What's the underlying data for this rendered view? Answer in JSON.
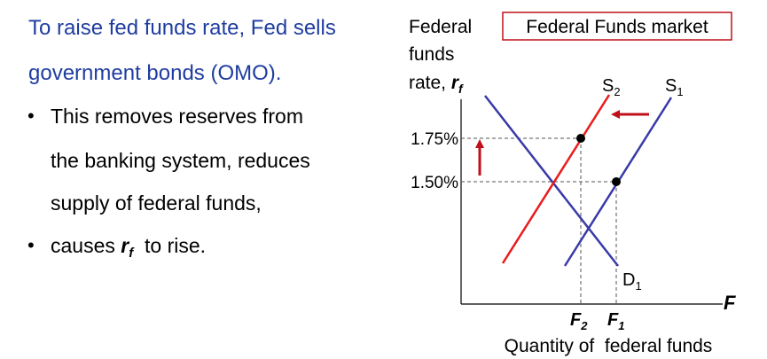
{
  "text": {
    "heading_line1": "To raise fed funds rate, Fed sells",
    "heading_line2": "government bonds (OMO).",
    "bullet_marker": "•",
    "bullet1_line1": "This removes reserves from",
    "bullet1_line2": "the banking system, reduces",
    "bullet1_line3": "supply of federal funds,",
    "bullet2_prefix": "causes ",
    "bullet2_var": "r",
    "bullet2_sub": "f",
    "bullet2_suffix": "  to rise."
  },
  "diagram": {
    "title": "Federal Funds market",
    "yaxis_line1": "Federal",
    "yaxis_line2": "funds",
    "yaxis_line3": "rate, ",
    "yaxis_var": "r",
    "yaxis_sub": "f",
    "xaxis_label": "Quantity of  federal funds",
    "xaxis_symbol": "F",
    "tick_high": "1.75%",
    "tick_low": "1.50%",
    "f2_main": "F",
    "f2_sub": "2",
    "f1_main": "F",
    "f1_sub": "1",
    "s2_main": "S",
    "s2_sub": "2",
    "s1_main": "S",
    "s1_sub": "1",
    "d1_main": "D",
    "d1_sub": "1"
  },
  "colors": {
    "heading": "#1f3da0",
    "supply_new": "#e81c1c",
    "supply_old": "#3a3aa8",
    "demand": "#3a3aa8",
    "arrow": "#c0101a",
    "title_border": "#c0101a"
  }
}
